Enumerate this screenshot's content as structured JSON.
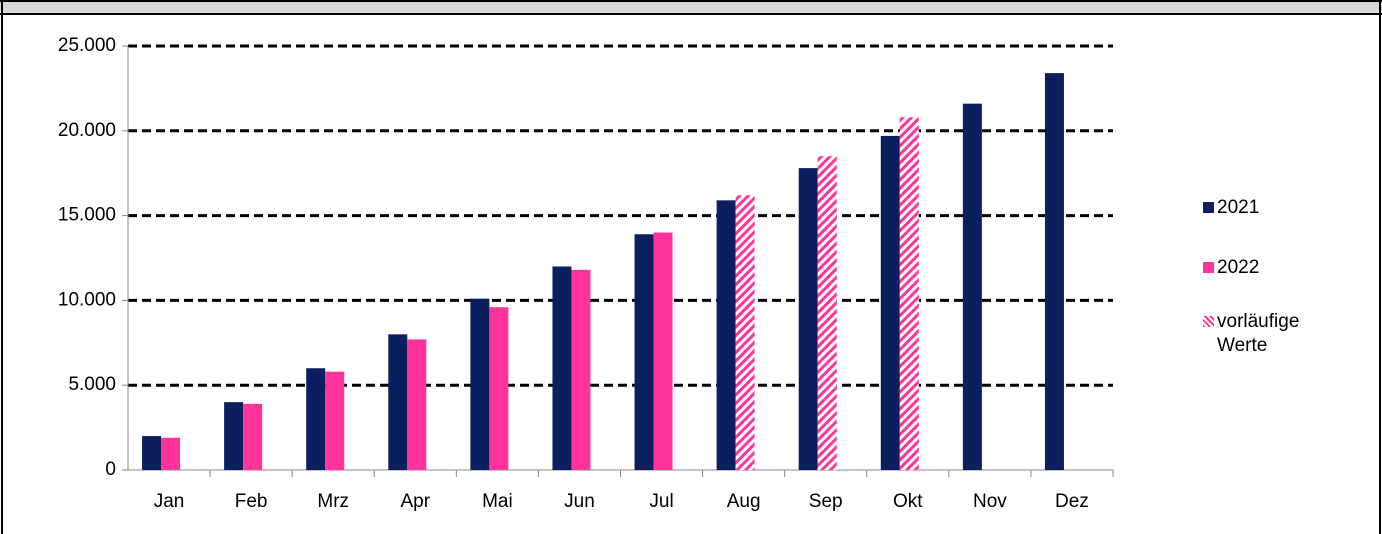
{
  "chart_data": {
    "type": "bar",
    "categories": [
      "Jan",
      "Feb",
      "Mrz",
      "Apr",
      "Mai",
      "Jun",
      "Jul",
      "Aug",
      "Sep",
      "Okt",
      "Nov",
      "Dez"
    ],
    "series": [
      {
        "name": "2021",
        "color": "#0b1f5e",
        "values": [
          2000,
          4000,
          6000,
          8000,
          10100,
          12000,
          13900,
          15900,
          17800,
          19700,
          21600,
          23400
        ]
      },
      {
        "name": "2022",
        "color": "#ff3399",
        "values": [
          1900,
          3900,
          5800,
          7700,
          9600,
          11800,
          14000,
          null,
          null,
          null,
          null,
          null
        ]
      },
      {
        "name": "vorläufige Werte",
        "color": "#ff3399",
        "pattern": "hatch",
        "values": [
          null,
          null,
          null,
          null,
          null,
          null,
          null,
          16200,
          18500,
          20800,
          null,
          null
        ]
      }
    ],
    "ylim": [
      0,
      25000
    ],
    "yticks": [
      0,
      {
        "value": 5000,
        "label": "5.000"
      },
      {
        "value": 10000,
        "label": "10.000"
      },
      {
        "value": 15000,
        "label": "15.000"
      },
      {
        "value": 20000,
        "label": "20.000"
      },
      {
        "value": 25000,
        "label": "25.000"
      }
    ],
    "grid": true,
    "legend": "right"
  }
}
